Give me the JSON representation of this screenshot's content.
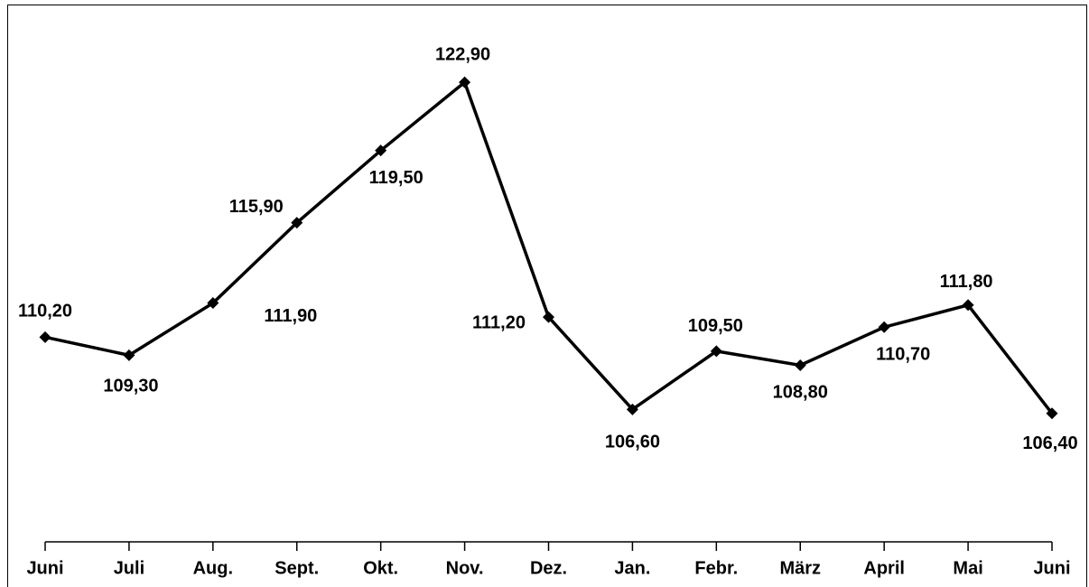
{
  "chart_data": {
    "type": "line",
    "categories": [
      "Juni",
      "Juli",
      "Aug.",
      "Sept.",
      "Okt.",
      "Nov.",
      "Dez.",
      "Jan.",
      "Febr.",
      "März",
      "April",
      "Mai",
      "Juni"
    ],
    "values": [
      110.2,
      109.3,
      111.9,
      115.9,
      119.5,
      122.9,
      111.2,
      106.6,
      109.5,
      108.8,
      110.7,
      111.8,
      106.4
    ],
    "value_labels": [
      "110,20",
      "109,30",
      "111,90",
      "115,90",
      "119,50",
      "122,90",
      "111,20",
      "106,60",
      "109,50",
      "108,80",
      "110,70",
      "111,80",
      "106,40"
    ],
    "color": "#000000",
    "ylim": [
      100,
      127
    ]
  }
}
